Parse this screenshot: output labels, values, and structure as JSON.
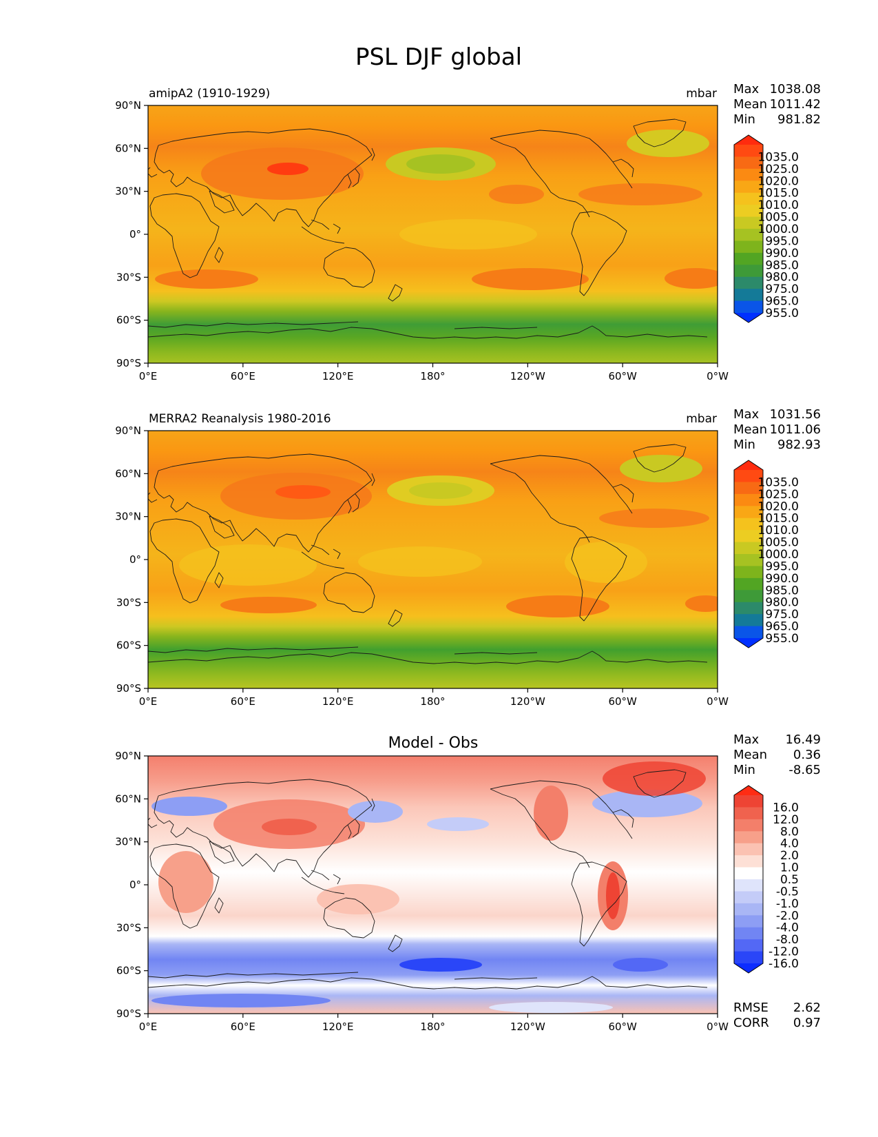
{
  "title": "PSL DJF global",
  "lat_labels": [
    "90°N",
    "60°N",
    "30°N",
    "0°",
    "30°S",
    "60°S",
    "90°S"
  ],
  "lon_labels": [
    "0°E",
    "60°E",
    "120°E",
    "180°",
    "120°W",
    "60°W",
    "0°W"
  ],
  "stat_labels": {
    "max": "Max",
    "mean": "Mean",
    "min": "Min",
    "rmse": "RMSE",
    "corr": "CORR"
  },
  "panels": [
    {
      "left_title": "amipA2 (1910-1929)",
      "center_title": "",
      "units": "mbar",
      "stats": {
        "max": "1038.08",
        "mean": "1011.42",
        "min": "981.82"
      },
      "colorbar": {
        "labels": [
          "1035.0",
          "1025.0",
          "1020.0",
          "1015.0",
          "1010.0",
          "1005.0",
          "1000.0",
          "995.0",
          "990.0",
          "985.0",
          "980.0",
          "975.0",
          "965.0",
          "955.0"
        ],
        "colors": [
          "#ff2b0e",
          "#ff4a12",
          "#f86a14",
          "#fb8a12",
          "#f9a715",
          "#f5c21d",
          "#eccd22",
          "#c9c922",
          "#a6c222",
          "#7eb41c",
          "#52a523",
          "#3e9a38",
          "#2c8a6a",
          "#147a98",
          "#0a55e8",
          "#0030ff"
        ]
      }
    },
    {
      "left_title": "MERRA2 Reanalysis 1980-2016",
      "center_title": "",
      "units": "mbar",
      "stats": {
        "max": "1031.56",
        "mean": "1011.06",
        "min": "982.93"
      },
      "colorbar": {
        "labels": [
          "1035.0",
          "1025.0",
          "1020.0",
          "1015.0",
          "1010.0",
          "1005.0",
          "1000.0",
          "995.0",
          "990.0",
          "985.0",
          "980.0",
          "975.0",
          "965.0",
          "955.0"
        ],
        "colors": [
          "#ff2b0e",
          "#ff4a12",
          "#f86a14",
          "#fb8a12",
          "#f9a715",
          "#f5c21d",
          "#eccd22",
          "#c9c922",
          "#a6c222",
          "#7eb41c",
          "#52a523",
          "#3e9a38",
          "#2c8a6a",
          "#147a98",
          "#0a55e8",
          "#0030ff"
        ]
      }
    },
    {
      "left_title": "",
      "center_title": "Model - Obs",
      "units": "",
      "stats": {
        "max": "16.49",
        "mean": "0.36",
        "min": "-8.65"
      },
      "rmse": "2.62",
      "corr": "0.97",
      "colorbar": {
        "labels": [
          "16.0",
          "12.0",
          "8.0",
          "4.0",
          "2.0",
          "1.0",
          "0.5",
          "-0.5",
          "-1.0",
          "-2.0",
          "-4.0",
          "-8.0",
          "-12.0",
          "-16.0"
        ],
        "colors": [
          "#ff2c14",
          "#ee4434",
          "#f0624e",
          "#f37f6a",
          "#f7a08a",
          "#fbc2b2",
          "#fde0d6",
          "#ffffff",
          "#dfe4fb",
          "#c4ccf8",
          "#a9b6f5",
          "#8d9ef4",
          "#7185f3",
          "#5368f5",
          "#2a46f8",
          "#0c2cff"
        ]
      }
    }
  ]
}
